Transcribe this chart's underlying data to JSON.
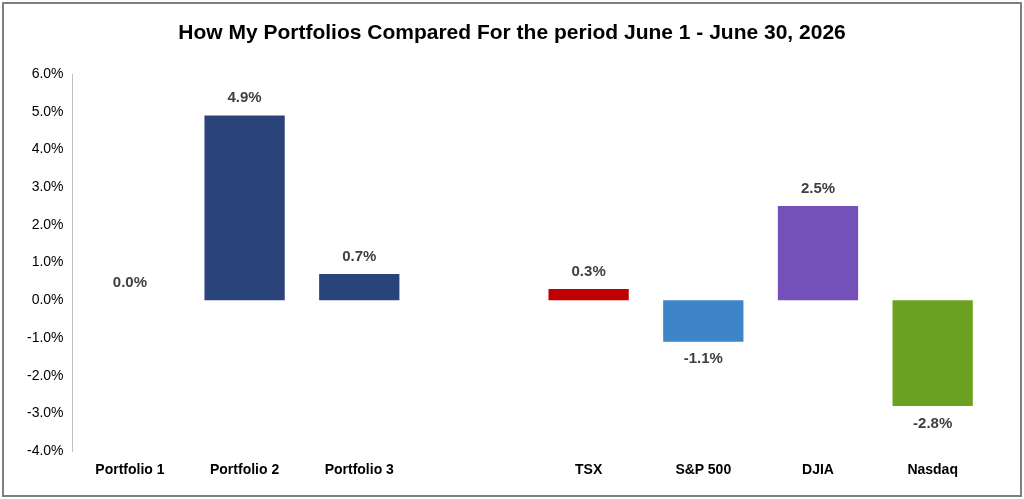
{
  "chart_data": {
    "type": "bar",
    "title": "How My Portfolios Compared For the period June 1 - June 30, 2026",
    "categories": [
      "Portfolio 1",
      "Portfolio 2",
      "Portfolio 3",
      null,
      "TSX",
      "S&P 500",
      "DJIA",
      "Nasdaq"
    ],
    "values": [
      0.0,
      4.9,
      0.7,
      null,
      0.3,
      -1.1,
      2.5,
      -2.8
    ],
    "value_labels": [
      "0.0%",
      "4.9%",
      "0.7%",
      null,
      "0.3%",
      "-1.1%",
      "2.5%",
      "-2.8%"
    ],
    "colors": [
      "#2a4378",
      "#2a4378",
      "#2a4378",
      "#2a4378",
      "#c00000",
      "#3d85c6",
      "#7451b8",
      "#6aa121"
    ],
    "ylim": [
      -4,
      6
    ],
    "yticks": [
      {
        "value": -4,
        "label": "-4.0%"
      },
      {
        "value": -3,
        "label": "-3.0%"
      },
      {
        "value": -2,
        "label": "-2.0%"
      },
      {
        "value": -1,
        "label": "-1.0%"
      },
      {
        "value": 0,
        "label": "0.0%"
      },
      {
        "value": 1,
        "label": "1.0%"
      },
      {
        "value": 2,
        "label": "2.0%"
      },
      {
        "value": 3,
        "label": "3.0%"
      },
      {
        "value": 4,
        "label": "4.0%"
      },
      {
        "value": 5,
        "label": "5.0%"
      },
      {
        "value": 6,
        "label": "6.0%"
      }
    ],
    "grid": false,
    "legend": false
  }
}
